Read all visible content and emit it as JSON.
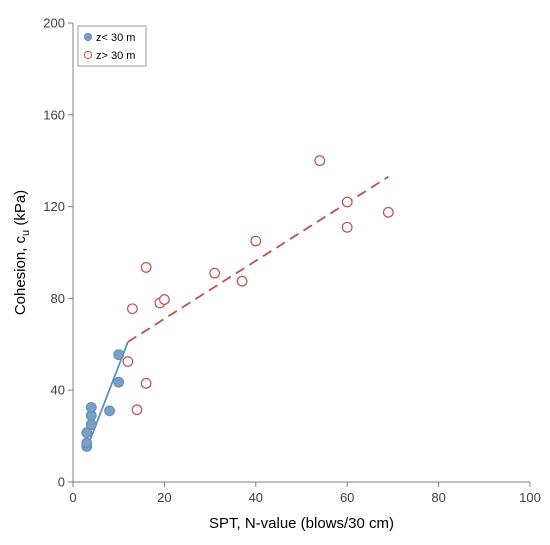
{
  "chart_data": {
    "type": "scatter",
    "xlabel": "SPT, N-value  (blows/30 cm)",
    "ylabel": {
      "main": "Cohesion, c",
      "sub": "u",
      "suffix": " (kPa)"
    },
    "xlim": [
      0,
      100
    ],
    "ylim": [
      0,
      200
    ],
    "xticks": [
      0,
      20,
      40,
      60,
      80,
      100
    ],
    "yticks": [
      0,
      40,
      80,
      120,
      160,
      200
    ],
    "grid": false,
    "legend_position": "top-left",
    "series": [
      {
        "name": "z< 30 m",
        "marker": "filled-circle",
        "color": "#5b8fc7",
        "fill": "#7f9fbf",
        "points": [
          [
            3,
            15.5
          ],
          [
            3,
            17
          ],
          [
            3,
            21.5
          ],
          [
            4,
            25
          ],
          [
            4,
            29
          ],
          [
            4,
            32.5
          ],
          [
            8,
            31
          ],
          [
            10,
            43.5
          ],
          [
            10,
            55.5
          ]
        ],
        "trend": {
          "style": "solid",
          "color": "#5b8fc7",
          "from": [
            3.5,
            17
          ],
          "to": [
            12,
            61
          ]
        }
      },
      {
        "name": "z> 30 m",
        "marker": "open-circle",
        "color": "#c0504d",
        "points": [
          [
            12,
            52.5
          ],
          [
            13,
            75.5
          ],
          [
            14,
            31.5
          ],
          [
            16,
            43
          ],
          [
            16,
            93.5
          ],
          [
            19,
            78
          ],
          [
            20,
            79.5
          ],
          [
            31,
            91
          ],
          [
            37,
            87.5
          ],
          [
            40,
            105
          ],
          [
            54,
            140
          ],
          [
            60,
            111
          ],
          [
            60,
            122
          ],
          [
            69,
            117.5
          ]
        ],
        "trend": {
          "style": "dashed",
          "color": "#c0504d",
          "from": [
            12,
            61
          ],
          "to": [
            69,
            133
          ]
        }
      }
    ]
  }
}
